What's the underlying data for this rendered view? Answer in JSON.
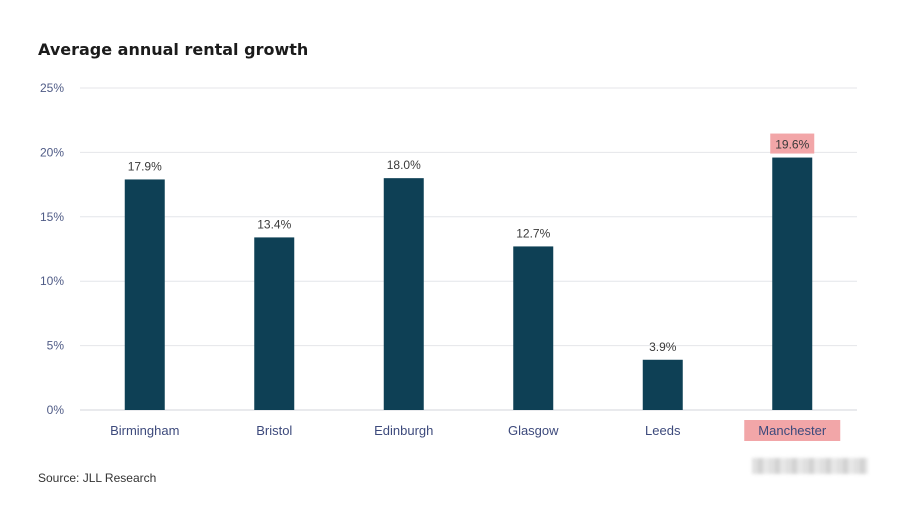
{
  "chart_data": {
    "type": "bar",
    "title": "Average annual rental growth",
    "categories": [
      "Birmingham",
      "Bristol",
      "Edinburgh",
      "Glasgow",
      "Leeds",
      "Manchester"
    ],
    "values": [
      17.9,
      13.4,
      18.0,
      12.7,
      3.9,
      19.6
    ],
    "value_labels": [
      "17.9%",
      "13.4%",
      "18.0%",
      "12.7%",
      "3.9%",
      "19.6%"
    ],
    "y_ticks": [
      0,
      5,
      10,
      15,
      20,
      25
    ],
    "y_tick_labels": [
      "0%",
      "5%",
      "10%",
      "15%",
      "20%",
      "25%"
    ],
    "ylim": [
      0,
      25
    ],
    "xlabel": "",
    "ylabel": "",
    "grid": true,
    "highlighted_category": "Manchester",
    "colors": {
      "bar": "#0e4055",
      "highlight": "#f2a6a8",
      "grid": "#e4e6ea"
    }
  },
  "source": "Source: JLL Research"
}
